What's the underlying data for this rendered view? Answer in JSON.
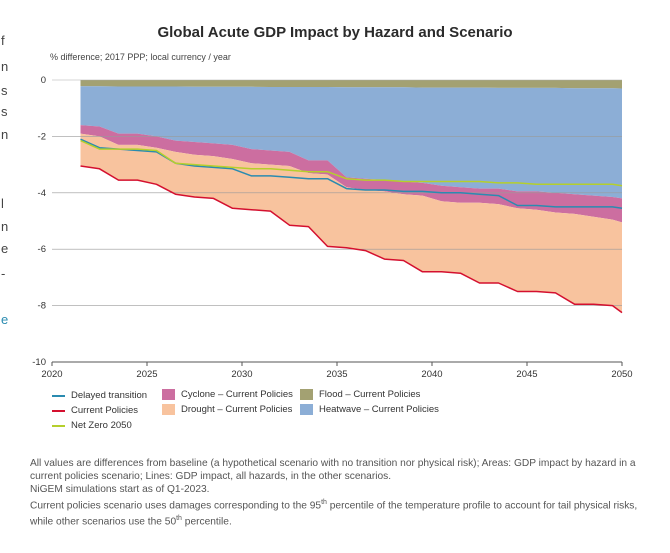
{
  "left_edge_glyphs": [
    "f",
    "n",
    "s",
    "s",
    "n",
    "l",
    "n",
    "e",
    "-",
    "e"
  ],
  "chart_data": {
    "type": "area",
    "title": "Global Acute GDP Impact by Hazard and Scenario",
    "subtitle": "% difference; 2017 PPP; local currency / year",
    "xlim": [
      2020,
      2050
    ],
    "ylim": [
      -10,
      0
    ],
    "xticks": [
      "2020",
      "2025",
      "2030",
      "2035",
      "2040",
      "2045",
      "2050"
    ],
    "yticks": [
      "0",
      "-2",
      "-4",
      "-6",
      "-8",
      "-10"
    ],
    "grid": true,
    "x": [
      2021.5,
      2022.5,
      2023.5,
      2024.5,
      2025.5,
      2026.5,
      2027.5,
      2028.5,
      2029.5,
      2030.5,
      2031.5,
      2032.5,
      2033.5,
      2034.5,
      2035.5,
      2036.5,
      2037.5,
      2038.5,
      2039.5,
      2040.5,
      2041.5,
      2042.5,
      2043.5,
      2044.5,
      2045.5,
      2046.5,
      2047.5,
      2048.5,
      2049.5,
      2050
    ],
    "areas": [
      {
        "name": "Flood – Current Policies",
        "color": "#a3a172",
        "top": [
          0,
          0,
          0,
          0,
          0,
          0,
          0,
          0,
          0,
          0,
          0,
          0,
          0,
          0,
          0,
          0,
          0,
          0,
          0,
          0,
          0,
          0,
          0,
          0,
          0,
          0,
          0,
          0,
          0,
          0
        ],
        "bottom": [
          -0.22,
          -0.22,
          -0.23,
          -0.23,
          -0.23,
          -0.23,
          -0.24,
          -0.24,
          -0.24,
          -0.24,
          -0.25,
          -0.25,
          -0.25,
          -0.25,
          -0.26,
          -0.26,
          -0.26,
          -0.26,
          -0.27,
          -0.27,
          -0.27,
          -0.27,
          -0.28,
          -0.28,
          -0.28,
          -0.28,
          -0.29,
          -0.29,
          -0.29,
          -0.3
        ]
      },
      {
        "name": "Heatwave – Current Policies",
        "color": "#8caed6",
        "top": [
          -0.22,
          -0.22,
          -0.23,
          -0.23,
          -0.23,
          -0.23,
          -0.24,
          -0.24,
          -0.24,
          -0.24,
          -0.25,
          -0.25,
          -0.25,
          -0.25,
          -0.26,
          -0.26,
          -0.26,
          -0.26,
          -0.27,
          -0.27,
          -0.27,
          -0.27,
          -0.28,
          -0.28,
          -0.28,
          -0.28,
          -0.29,
          -0.29,
          -0.29,
          -0.3
        ],
        "bottom": [
          -1.6,
          -1.65,
          -1.9,
          -1.9,
          -2.0,
          -2.15,
          -2.2,
          -2.25,
          -2.3,
          -2.45,
          -2.5,
          -2.55,
          -2.85,
          -2.85,
          -3.45,
          -3.5,
          -3.55,
          -3.6,
          -3.65,
          -3.75,
          -3.8,
          -3.85,
          -3.85,
          -3.95,
          -3.95,
          -4.0,
          -4.05,
          -4.1,
          -4.15,
          -4.2
        ]
      },
      {
        "name": "Cyclone – Current Policies",
        "color": "#cc6ea0",
        "top": [
          -1.6,
          -1.65,
          -1.9,
          -1.9,
          -2.0,
          -2.15,
          -2.2,
          -2.25,
          -2.3,
          -2.45,
          -2.5,
          -2.55,
          -2.85,
          -2.85,
          -3.45,
          -3.5,
          -3.55,
          -3.6,
          -3.65,
          -3.75,
          -3.8,
          -3.85,
          -3.85,
          -3.95,
          -3.95,
          -4.0,
          -4.05,
          -4.1,
          -4.15,
          -4.2
        ],
        "bottom": [
          -1.9,
          -2.0,
          -2.3,
          -2.3,
          -2.4,
          -2.55,
          -2.65,
          -2.7,
          -2.8,
          -2.95,
          -3.0,
          -3.05,
          -3.3,
          -3.35,
          -3.8,
          -3.9,
          -3.95,
          -4.05,
          -4.1,
          -4.3,
          -4.35,
          -4.35,
          -4.4,
          -4.55,
          -4.6,
          -4.7,
          -4.75,
          -4.85,
          -4.95,
          -5.05
        ]
      },
      {
        "name": "Drought – Current Policies",
        "color": "#f8c39e",
        "top": [
          -1.9,
          -2.0,
          -2.3,
          -2.3,
          -2.4,
          -2.55,
          -2.65,
          -2.7,
          -2.8,
          -2.95,
          -3.0,
          -3.05,
          -3.3,
          -3.35,
          -3.8,
          -3.9,
          -3.95,
          -4.05,
          -4.1,
          -4.3,
          -4.35,
          -4.35,
          -4.4,
          -4.55,
          -4.6,
          -4.7,
          -4.75,
          -4.85,
          -4.95,
          -5.05
        ],
        "bottom": [
          -3.05,
          -3.15,
          -3.55,
          -3.55,
          -3.7,
          -4.05,
          -4.15,
          -4.2,
          -4.55,
          -4.6,
          -4.65,
          -5.15,
          -5.2,
          -5.9,
          -5.95,
          -6.05,
          -6.35,
          -6.4,
          -6.8,
          -6.8,
          -6.85,
          -7.2,
          -7.2,
          -7.5,
          -7.5,
          -7.55,
          -7.95,
          -7.95,
          -8.0,
          -8.25
        ]
      }
    ],
    "series": [
      {
        "name": "Delayed transition",
        "color": "#2a8bb0",
        "values": [
          -2.1,
          -2.4,
          -2.45,
          -2.5,
          -2.55,
          -2.95,
          -3.05,
          -3.1,
          -3.15,
          -3.4,
          -3.4,
          -3.45,
          -3.5,
          -3.5,
          -3.85,
          -3.9,
          -3.9,
          -3.95,
          -3.95,
          -4.0,
          -4.0,
          -4.05,
          -4.1,
          -4.45,
          -4.45,
          -4.5,
          -4.5,
          -4.5,
          -4.5,
          -4.55
        ]
      },
      {
        "name": "Current Policies",
        "color": "#d4102f",
        "values": [
          -3.05,
          -3.15,
          -3.55,
          -3.55,
          -3.7,
          -4.05,
          -4.15,
          -4.2,
          -4.55,
          -4.6,
          -4.65,
          -5.15,
          -5.2,
          -5.9,
          -5.95,
          -6.05,
          -6.35,
          -6.4,
          -6.8,
          -6.8,
          -6.85,
          -7.2,
          -7.2,
          -7.5,
          -7.5,
          -7.55,
          -7.95,
          -7.95,
          -8.0,
          -8.25
        ]
      },
      {
        "name": "Net Zero 2050",
        "color": "#b5cf2c",
        "values": [
          -2.15,
          -2.45,
          -2.45,
          -2.45,
          -2.5,
          -2.95,
          -3.0,
          -3.05,
          -3.1,
          -3.15,
          -3.15,
          -3.2,
          -3.25,
          -3.25,
          -3.5,
          -3.55,
          -3.55,
          -3.6,
          -3.6,
          -3.6,
          -3.6,
          -3.6,
          -3.65,
          -3.65,
          -3.7,
          -3.7,
          -3.7,
          -3.7,
          -3.7,
          -3.75
        ]
      }
    ],
    "legend": [
      {
        "label": "Delayed transition",
        "kind": "line",
        "color": "#2a8bb0"
      },
      {
        "label": "Current Policies",
        "kind": "line",
        "color": "#d4102f"
      },
      {
        "label": "Net Zero 2050",
        "kind": "line",
        "color": "#b5cf2c"
      },
      {
        "label": "Cyclone – Current Policies",
        "kind": "box",
        "color": "#cc6ea0"
      },
      {
        "label": "Drought – Current Policies",
        "kind": "box",
        "color": "#f8c39e"
      },
      {
        "label": "Flood – Current Policies",
        "kind": "box",
        "color": "#a3a172"
      },
      {
        "label": "Heatwave – Current Policies",
        "kind": "box",
        "color": "#8caed6"
      }
    ],
    "legend_position": "bottom"
  },
  "notes": {
    "line1": "All values are differences from baseline (a hypothetical scenario with no transition nor physical risk); Areas: GDP impact by hazard in a current policies scenario;  Lines: GDP impact, all hazards, in the other scenarios.",
    "line2": "NiGEM simulations start as of Q1-2023.",
    "line3_pre": "Current policies scenario uses damages corresponding to the 95",
    "line3_sup": "th",
    "line3_mid": " percentile of the temperature profile to account for tail physical risks, while other scenarios use the 50",
    "line3_sup2": "th",
    "line3_post": " percentile."
  }
}
